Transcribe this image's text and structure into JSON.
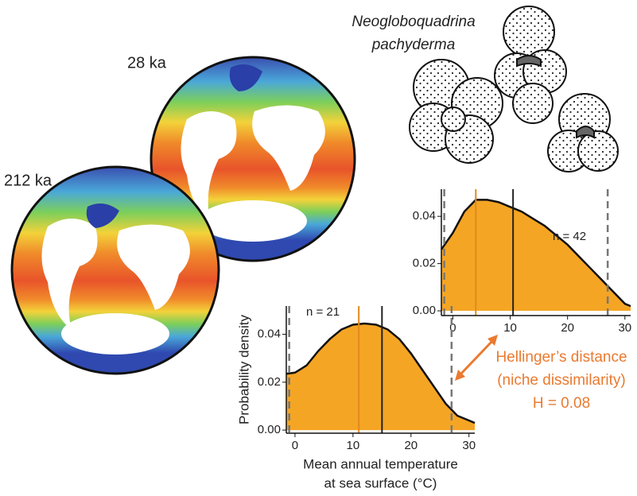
{
  "chart_data": [
    {
      "type": "area",
      "annotation": "n = 42",
      "color": "#f5a524",
      "x": [
        -2,
        0,
        2,
        4,
        6,
        8,
        10,
        12,
        14,
        16,
        18,
        20,
        22,
        24,
        26,
        28,
        30,
        31
      ],
      "values": [
        0.026,
        0.033,
        0.042,
        0.047,
        0.047,
        0.046,
        0.044,
        0.042,
        0.039,
        0.036,
        0.032,
        0.028,
        0.023,
        0.018,
        0.013,
        0.008,
        0.003,
        0.002
      ],
      "xlim": [
        -2,
        31
      ],
      "xticks": [
        0,
        10,
        20,
        30
      ],
      "ylim": [
        -0.002,
        0.0515
      ],
      "yticks": [
        {
          "value": 0,
          "label": "0.00"
        },
        {
          "value": 0.02,
          "label": "0.02"
        },
        {
          "value": 0.04,
          "label": "0.04"
        }
      ],
      "lines": [
        {
          "x": 4,
          "color": "#e08a1e"
        },
        {
          "x": 10.5,
          "color": "#222222"
        }
      ],
      "range": [
        -1.5,
        27
      ]
    },
    {
      "type": "area",
      "annotation": "n = 21",
      "color": "#f5a524",
      "x": [
        -1.5,
        0,
        2,
        4,
        6,
        8,
        10,
        12,
        14,
        16,
        18,
        20,
        22,
        24,
        26,
        28,
        30,
        31
      ],
      "values": [
        0.0235,
        0.024,
        0.027,
        0.033,
        0.038,
        0.042,
        0.044,
        0.0445,
        0.044,
        0.042,
        0.038,
        0.032,
        0.025,
        0.018,
        0.011,
        0.006,
        0.004,
        0.003
      ],
      "xlim": [
        -1.5,
        31
      ],
      "xticks": [
        0,
        10,
        20,
        30
      ],
      "ylim": [
        -0.0013,
        0.0518
      ],
      "yticks": [
        {
          "value": 0,
          "label": "0.00"
        },
        {
          "value": 0.02,
          "label": "0.02"
        },
        {
          "value": 0.04,
          "label": "0.04"
        }
      ],
      "lines": [
        {
          "x": 11,
          "color": "#e08a1e"
        },
        {
          "x": 15,
          "color": "#222222"
        }
      ],
      "range": [
        -1,
        27
      ],
      "ylabel": "Probability density",
      "xlabel": [
        "Mean annual temperature",
        "at sea surface (°C)"
      ]
    }
  ],
  "labels": {
    "globes": [
      "212 ka",
      "28 ka"
    ],
    "species": [
      "Neogloboquadrina",
      "pachyderma"
    ],
    "hellinger": [
      "Hellinger’s distance",
      "(niche dissimilarity)",
      "H = 0.08"
    ]
  }
}
